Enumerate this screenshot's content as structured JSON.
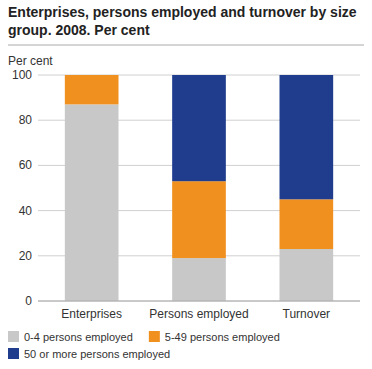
{
  "chart_data": {
    "type": "bar",
    "stacked": true,
    "title": "Enterprises, persons employed and turnover by size group. 2008. Per cent",
    "y_label": "Per cent",
    "categories": [
      "Enterprises",
      "Persons employed",
      "Turnover"
    ],
    "series": [
      {
        "name": "0-4 persons employed",
        "color": "#c8c8c8",
        "values": [
          87,
          19,
          23
        ]
      },
      {
        "name": "5-49 persons employed",
        "color": "#f0901e",
        "values": [
          13,
          34,
          22
        ]
      },
      {
        "name": "50 or more persons employed",
        "color": "#1f3d8c",
        "values": [
          0,
          47,
          55
        ]
      }
    ],
    "ylim": [
      0,
      100
    ],
    "yticks": [
      0,
      20,
      40,
      60,
      80,
      100
    ],
    "grid": true,
    "legend": "bottom"
  }
}
